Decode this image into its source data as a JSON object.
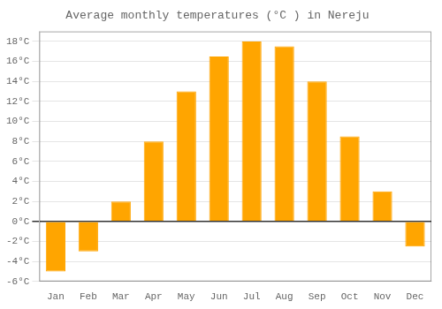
{
  "chart_data": {
    "type": "bar",
    "title": "Average monthly temperatures (°C ) in Nereju",
    "categories": [
      "Jan",
      "Feb",
      "Mar",
      "Apr",
      "May",
      "Jun",
      "Jul",
      "Aug",
      "Sep",
      "Oct",
      "Nov",
      "Dec"
    ],
    "values": [
      -5.0,
      -3.0,
      2.0,
      8.0,
      13.0,
      16.5,
      18.0,
      17.5,
      14.0,
      8.5,
      3.0,
      -2.5
    ],
    "color": "#FFA500",
    "ylim": [
      -6,
      19
    ],
    "yticks": [
      {
        "value": -6,
        "label": "-6°C"
      },
      {
        "value": -4,
        "label": "-4°C"
      },
      {
        "value": -2,
        "label": "-2°C"
      },
      {
        "value": 0,
        "label": "0°C"
      },
      {
        "value": 2,
        "label": "2°C"
      },
      {
        "value": 4,
        "label": "4°C"
      },
      {
        "value": 6,
        "label": "6°C"
      },
      {
        "value": 8,
        "label": "8°C"
      },
      {
        "value": 10,
        "label": "10°C"
      },
      {
        "value": 12,
        "label": "12°C"
      },
      {
        "value": 14,
        "label": "14°C"
      },
      {
        "value": 16,
        "label": "16°C"
      },
      {
        "value": 18,
        "label": "18°C"
      }
    ],
    "grid": true
  }
}
